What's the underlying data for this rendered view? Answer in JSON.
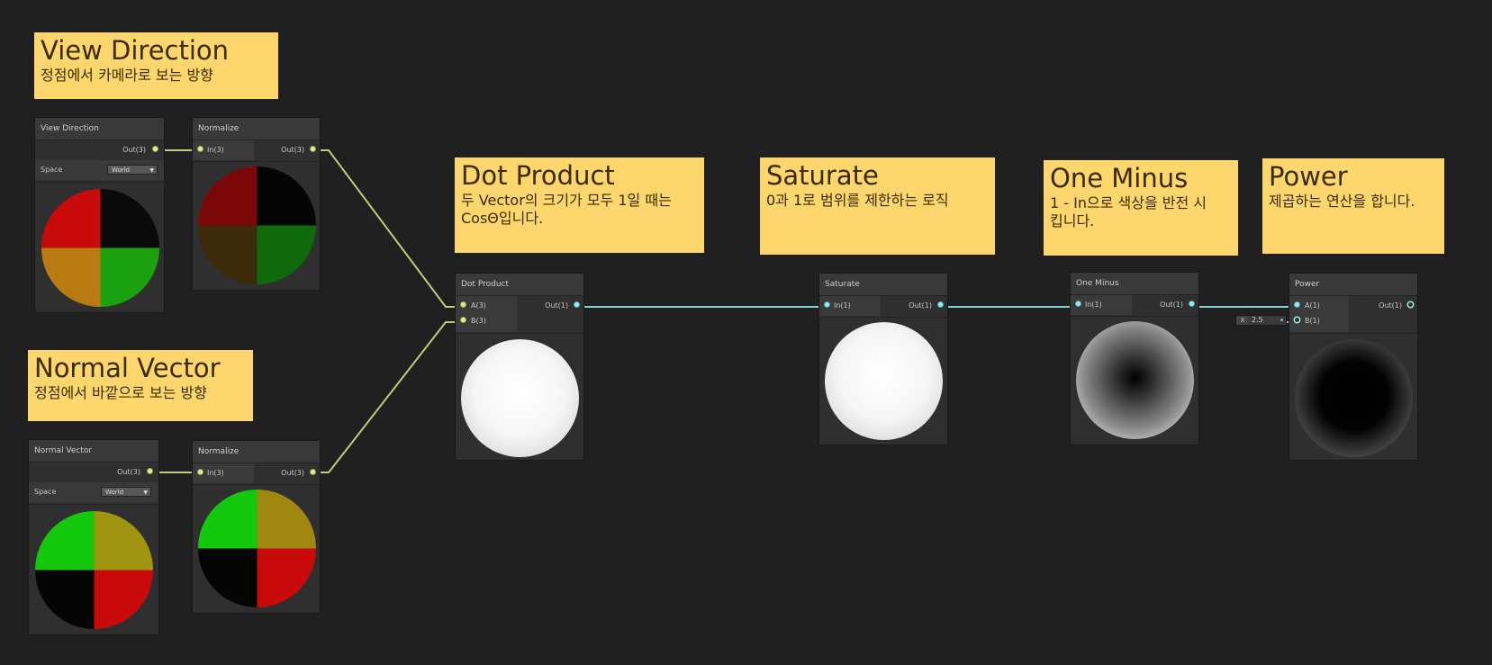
{
  "notes": {
    "view_direction": {
      "title": "View Direction",
      "body": "정점에서 카메라로 보는 방향"
    },
    "normal_vector": {
      "title": "Normal Vector",
      "body": "정점에서 바깥으로 보는 방향"
    },
    "dot_product": {
      "title": "Dot Product",
      "body": "두 Vector의 크기가 모두 1일 때는 CosΘ입니다."
    },
    "saturate": {
      "title": "Saturate",
      "body": "0과 1로 범위를 제한하는 로직"
    },
    "one_minus": {
      "title": "One Minus",
      "body": "1 - In으로 색상을 반전 시킵니다."
    },
    "power": {
      "title": "Power",
      "body": "제곱하는 연산을 합니다."
    }
  },
  "nodes": {
    "view_direction": {
      "title": "View Direction",
      "out": "Out(3)",
      "space_label": "Space",
      "space_value": "World"
    },
    "normalize_1": {
      "title": "Normalize",
      "in": "In(3)",
      "out": "Out(3)"
    },
    "normal_vector": {
      "title": "Normal Vector",
      "out": "Out(3)",
      "space_label": "Space",
      "space_value": "World"
    },
    "normalize_2": {
      "title": "Normalize",
      "in": "In(3)",
      "out": "Out(3)"
    },
    "dot_product": {
      "title": "Dot Product",
      "in_a": "A(3)",
      "in_b": "B(3)",
      "out": "Out(1)"
    },
    "saturate": {
      "title": "Saturate",
      "in": "In(1)",
      "out": "Out(1)"
    },
    "one_minus": {
      "title": "One Minus",
      "in": "In(1)",
      "out": "Out(1)"
    },
    "power": {
      "title": "Power",
      "in_a": "A(1)",
      "in_b": "B(1)",
      "out": "Out(1)",
      "b_axis": "X",
      "b_value": "2.5"
    }
  },
  "colors": {
    "background": "#202020",
    "note": "#fed66e",
    "wire_vec3": "#c8c87a",
    "wire_vec1": "#7fd3d2"
  }
}
